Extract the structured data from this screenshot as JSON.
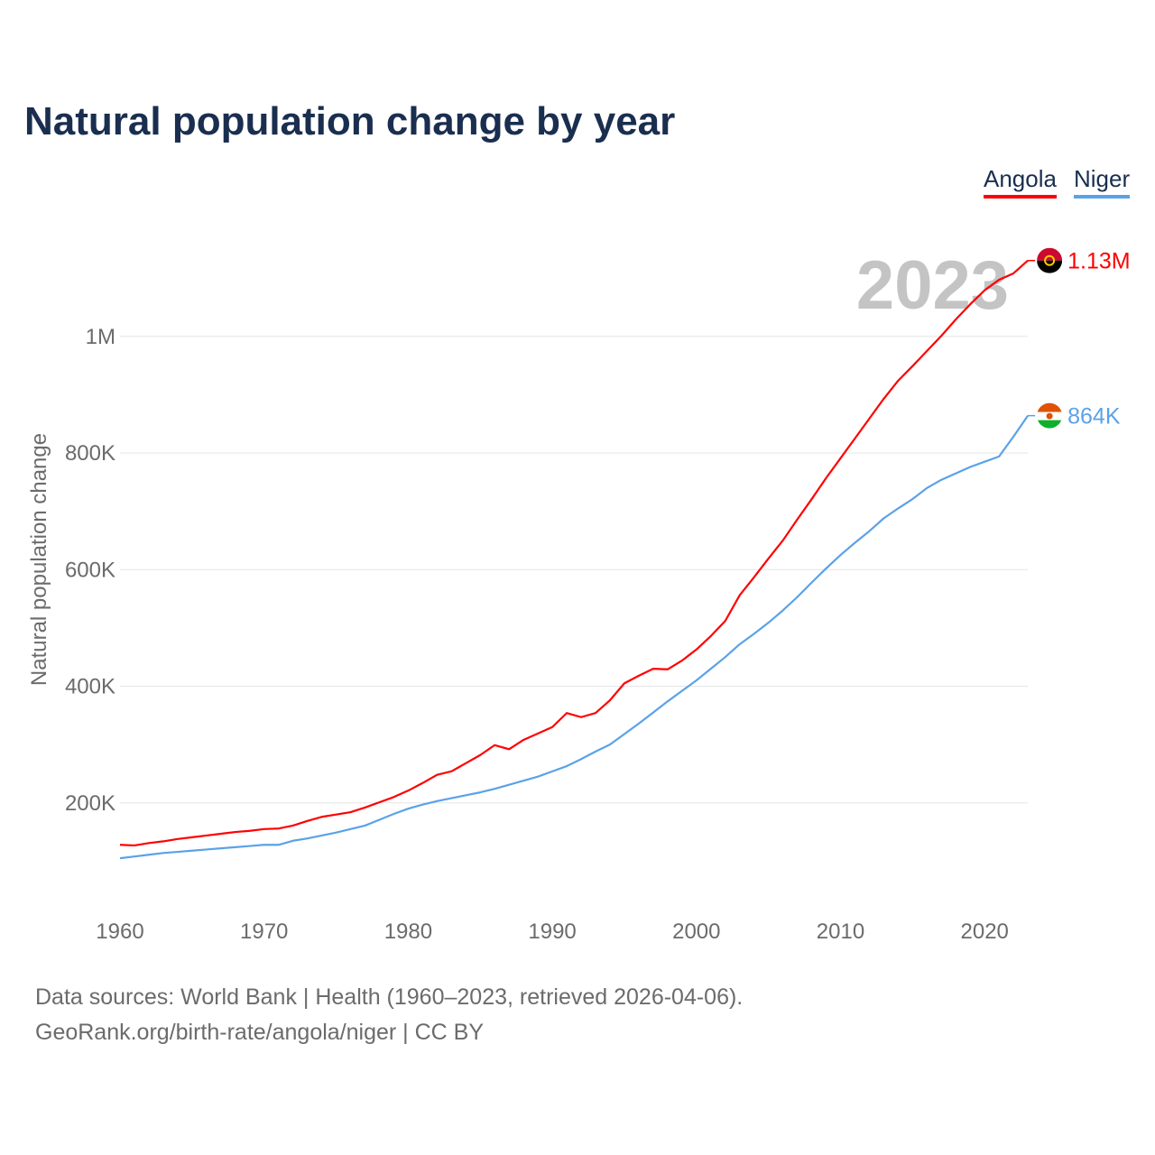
{
  "chart_data": {
    "type": "line",
    "title": "Natural population change by year",
    "xlabel": "",
    "ylabel": "Natural population change",
    "xlim": [
      1960,
      2023
    ],
    "ylim": [
      0,
      1150000
    ],
    "grid": true,
    "legend_position": "top-right",
    "x_ticks": [
      "1960",
      "1970",
      "1980",
      "1990",
      "2000",
      "2010",
      "2020"
    ],
    "y_ticks": [
      {
        "value": 200000,
        "label": "200K"
      },
      {
        "value": 400000,
        "label": "400K"
      },
      {
        "value": 600000,
        "label": "600K"
      },
      {
        "value": 800000,
        "label": "800K"
      },
      {
        "value": 1000000,
        "label": "1M"
      }
    ],
    "year_annotation": "2023",
    "x": [
      1960,
      1961,
      1962,
      1963,
      1964,
      1965,
      1966,
      1967,
      1968,
      1969,
      1970,
      1971,
      1972,
      1973,
      1974,
      1975,
      1976,
      1977,
      1978,
      1979,
      1980,
      1981,
      1982,
      1983,
      1984,
      1985,
      1986,
      1987,
      1988,
      1989,
      1990,
      1991,
      1992,
      1993,
      1994,
      1995,
      1996,
      1997,
      1998,
      1999,
      2000,
      2001,
      2002,
      2003,
      2004,
      2005,
      2006,
      2007,
      2008,
      2009,
      2010,
      2011,
      2012,
      2013,
      2014,
      2015,
      2016,
      2017,
      2018,
      2019,
      2020,
      2021,
      2022,
      2023
    ],
    "series": [
      {
        "name": "Angola",
        "color": "#ff0000",
        "end_label": "1.13M",
        "flag": "angola-flag",
        "values": [
          128000,
          127000,
          131000,
          134000,
          138000,
          141000,
          144000,
          147000,
          150000,
          152000,
          155000,
          156000,
          161000,
          169000,
          176000,
          180000,
          184000,
          192000,
          201000,
          210000,
          221000,
          234000,
          248000,
          254000,
          268000,
          282000,
          299000,
          292000,
          308000,
          319000,
          330000,
          354000,
          347000,
          354000,
          376000,
          405000,
          418000,
          430000,
          429000,
          444000,
          463000,
          486000,
          512000,
          556000,
          587000,
          619000,
          650000,
          686000,
          721000,
          757000,
          791000,
          825000,
          859000,
          893000,
          924000,
          949000,
          975000,
          1001000,
          1029000,
          1055000,
          1079000,
          1097000,
          1108000,
          1130000
        ]
      },
      {
        "name": "Niger",
        "color": "#5aa2e8",
        "end_label": "864K",
        "flag": "niger-flag",
        "values": [
          105000,
          108000,
          111000,
          114000,
          116000,
          118000,
          120000,
          122000,
          124000,
          126000,
          128000,
          128000,
          135000,
          139000,
          144000,
          149000,
          155000,
          161000,
          171000,
          181000,
          190000,
          197000,
          203000,
          208000,
          213000,
          218000,
          224000,
          231000,
          238000,
          245000,
          254000,
          263000,
          275000,
          288000,
          300000,
          318000,
          336000,
          355000,
          374000,
          392000,
          410000,
          430000,
          450000,
          472000,
          490000,
          509000,
          530000,
          553000,
          578000,
          602000,
          625000,
          646000,
          666000,
          688000,
          705000,
          721000,
          740000,
          754000,
          765000,
          776000,
          785000,
          794000,
          828000,
          864000
        ]
      }
    ]
  },
  "footer": {
    "line1": "Data sources: World Bank | Health (1960–2023, retrieved 2026-04-06).",
    "line2": "GeoRank.org/birth-rate/angola/niger | CC BY"
  }
}
